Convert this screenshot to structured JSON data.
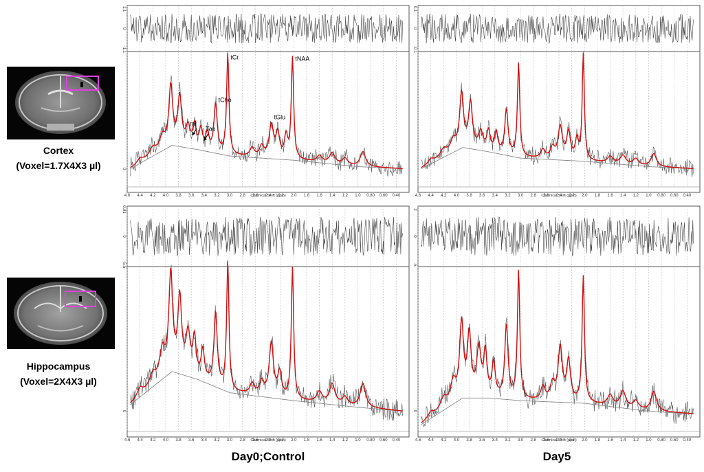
{
  "column_labels": {
    "left": "Day0;Control",
    "right": "Day5"
  },
  "regions": [
    {
      "name": "Cortex",
      "voxel": "(Voxel=1.7X4X3 µl)"
    },
    {
      "name": "Hippocampus",
      "voxel": "(Voxel=2X4X3 µl)"
    }
  ],
  "mri_box_color": "#e040e0",
  "colors": {
    "fit": "#d01010",
    "data": "#555555",
    "baseline": "#888888",
    "grid": "#bbbbbb"
  },
  "chart_data": [
    {
      "type": "line",
      "id": "cortex-day0",
      "xlabel": "Chemical Shift (ppm)",
      "xlim": [
        4.6,
        0.2
      ],
      "x_reversed": true,
      "ticks": [
        "4.6",
        "4.4",
        "4.2",
        "4.0",
        "3.8",
        "3.6",
        "3.4",
        "3.2",
        "3.0",
        "2.8",
        "2.6",
        "2.4",
        "2.2",
        "2.0",
        "1.8",
        "1.6",
        "1.4",
        "1.2",
        "1.0",
        "0.80",
        "0.60",
        "0.40"
      ],
      "residual_ticks": [
        "1.1",
        "0",
        "-1.1"
      ],
      "series": [
        {
          "name": "fit",
          "peaks": [
            [
              4.4,
              0.04,
              0.05
            ],
            [
              4.2,
              0.07,
              0.06
            ],
            [
              4.05,
              0.12,
              0.05
            ],
            [
              3.92,
              0.55,
              0.035
            ],
            [
              3.78,
              0.45,
              0.035
            ],
            [
              3.65,
              0.18,
              0.04
            ],
            [
              3.55,
              0.2,
              0.03
            ],
            [
              3.45,
              0.18,
              0.03
            ],
            [
              3.35,
              0.15,
              0.03
            ],
            [
              3.22,
              0.45,
              0.03
            ],
            [
              3.03,
              0.95,
              0.022
            ],
            [
              2.65,
              0.08,
              0.04
            ],
            [
              2.5,
              0.1,
              0.04
            ],
            [
              2.35,
              0.3,
              0.04
            ],
            [
              2.25,
              0.22,
              0.035
            ],
            [
              2.12,
              0.2,
              0.03
            ],
            [
              2.02,
              0.95,
              0.022
            ],
            [
              1.6,
              0.06,
              0.05
            ],
            [
              1.4,
              0.1,
              0.05
            ],
            [
              1.2,
              0.06,
              0.05
            ],
            [
              0.92,
              0.14,
              0.05
            ]
          ],
          "baseline": [
            [
              4.55,
              0.0
            ],
            [
              3.9,
              0.22
            ],
            [
              3.5,
              0.18
            ],
            [
              3.0,
              0.12
            ],
            [
              2.0,
              0.08
            ],
            [
              1.0,
              0.02
            ],
            [
              0.3,
              0.0
            ]
          ]
        }
      ],
      "peak_labels": [
        {
          "text": "tCr",
          "ppm": 3.03,
          "value": 1.0
        },
        {
          "text": "tNAA",
          "ppm": 2.02,
          "value": 0.99
        },
        {
          "text": "tCho",
          "ppm": 3.22,
          "value": 0.6
        },
        {
          "text": "tGlu",
          "ppm": 2.35,
          "value": 0.44
        },
        {
          "text": "mI",
          "ppm": 3.58,
          "value": 0.38
        },
        {
          "text": "Tau",
          "ppm": 3.42,
          "value": 0.33
        }
      ],
      "y_ticks": [
        "0"
      ]
    },
    {
      "type": "line",
      "id": "cortex-day5",
      "xlabel": "Chemical Shift (ppm)",
      "xlim": [
        4.6,
        0.2
      ],
      "x_reversed": true,
      "ticks": [
        "4.6",
        "4.4",
        "4.2",
        "4.0",
        "3.8",
        "3.6",
        "3.4",
        "3.2",
        "3.0",
        "2.8",
        "2.6",
        "2.4",
        "2.2",
        "2.0",
        "1.8",
        "1.6",
        "1.4",
        "1.2",
        "1.0",
        "0.80",
        "0.60",
        "0.40"
      ],
      "residual_ticks": [
        "0.1",
        "0",
        "-0.1"
      ],
      "series": [
        {
          "name": "fit",
          "peaks": [
            [
              4.4,
              0.04,
              0.05
            ],
            [
              4.2,
              0.07,
              0.06
            ],
            [
              4.05,
              0.1,
              0.05
            ],
            [
              3.92,
              0.5,
              0.035
            ],
            [
              3.78,
              0.42,
              0.035
            ],
            [
              3.62,
              0.16,
              0.04
            ],
            [
              3.5,
              0.18,
              0.03
            ],
            [
              3.38,
              0.18,
              0.03
            ],
            [
              3.22,
              0.42,
              0.03
            ],
            [
              3.03,
              0.88,
              0.022
            ],
            [
              2.65,
              0.08,
              0.04
            ],
            [
              2.5,
              0.1,
              0.04
            ],
            [
              2.38,
              0.3,
              0.04
            ],
            [
              2.25,
              0.25,
              0.035
            ],
            [
              2.12,
              0.18,
              0.03
            ],
            [
              2.02,
              0.99,
              0.02
            ],
            [
              1.6,
              0.06,
              0.05
            ],
            [
              1.4,
              0.08,
              0.05
            ],
            [
              1.2,
              0.06,
              0.05
            ],
            [
              0.92,
              0.12,
              0.05
            ]
          ],
          "baseline": [
            [
              4.55,
              0.0
            ],
            [
              3.9,
              0.2
            ],
            [
              3.5,
              0.16
            ],
            [
              3.0,
              0.1
            ],
            [
              2.0,
              0.07
            ],
            [
              1.0,
              0.02
            ],
            [
              0.3,
              0.0
            ]
          ]
        }
      ],
      "peak_labels": [],
      "y_ticks": []
    },
    {
      "type": "line",
      "id": "hippocampus-day0",
      "xlabel": "Chemical Shift (ppm)",
      "xlim": [
        4.6,
        0.2
      ],
      "x_reversed": true,
      "ticks": [
        "4.6",
        "4.4",
        "4.2",
        "4.0",
        "3.8",
        "3.6",
        "3.4",
        "3.2",
        "3.0",
        "2.8",
        "2.6",
        "2.4",
        "2.2",
        "2.0",
        "1.8",
        "1.6",
        "1.4",
        "1.2",
        "1.0",
        "0.80",
        "0.60",
        "0.40"
      ],
      "residual_ticks": [
        "0.81",
        "0",
        "-5.5"
      ],
      "series": [
        {
          "name": "fit",
          "peaks": [
            [
              4.4,
              0.06,
              0.05
            ],
            [
              4.2,
              0.08,
              0.06
            ],
            [
              4.05,
              0.2,
              0.05
            ],
            [
              3.92,
              0.72,
              0.035
            ],
            [
              3.78,
              0.55,
              0.035
            ],
            [
              3.65,
              0.3,
              0.04
            ],
            [
              3.55,
              0.28,
              0.03
            ],
            [
              3.42,
              0.22,
              0.03
            ],
            [
              3.22,
              0.55,
              0.03
            ],
            [
              3.03,
              0.97,
              0.022
            ],
            [
              2.65,
              0.08,
              0.04
            ],
            [
              2.5,
              0.1,
              0.04
            ],
            [
              2.35,
              0.4,
              0.04
            ],
            [
              2.22,
              0.18,
              0.035
            ],
            [
              2.02,
              0.99,
              0.022
            ],
            [
              1.6,
              0.08,
              0.05
            ],
            [
              1.4,
              0.15,
              0.05
            ],
            [
              1.2,
              0.06,
              0.05
            ],
            [
              0.92,
              0.18,
              0.05
            ]
          ],
          "baseline": [
            [
              4.55,
              0.05
            ],
            [
              3.9,
              0.3
            ],
            [
              3.5,
              0.24
            ],
            [
              3.0,
              0.14
            ],
            [
              2.0,
              0.08
            ],
            [
              1.0,
              0.03
            ],
            [
              0.3,
              0.0
            ]
          ]
        }
      ],
      "peak_labels": [],
      "y_ticks": [
        "0"
      ]
    },
    {
      "type": "line",
      "id": "hippocampus-day5",
      "xlabel": "Chemical Shift (ppm)",
      "xlim": [
        4.6,
        0.2
      ],
      "x_reversed": true,
      "ticks": [
        "4.6",
        "4.4",
        "4.2",
        "4.0",
        "3.8",
        "3.6",
        "3.4",
        "3.2",
        "3.0",
        "2.8",
        "2.6",
        "2.4",
        "2.2",
        "2.0",
        "1.8",
        "1.6",
        "1.4",
        "1.2",
        "1.0",
        "0.80",
        "0.60",
        "0.40"
      ],
      "residual_ticks": [
        "2",
        "0",
        "-5"
      ],
      "series": [
        {
          "name": "fit",
          "peaks": [
            [
              4.4,
              0.04,
              0.05
            ],
            [
              4.2,
              0.08,
              0.06
            ],
            [
              4.05,
              0.15,
              0.05
            ],
            [
              3.92,
              0.55,
              0.035
            ],
            [
              3.8,
              0.45,
              0.035
            ],
            [
              3.65,
              0.35,
              0.04
            ],
            [
              3.55,
              0.32,
              0.03
            ],
            [
              3.42,
              0.25,
              0.03
            ],
            [
              3.22,
              0.55,
              0.03
            ],
            [
              3.03,
              0.97,
              0.022
            ],
            [
              2.65,
              0.1,
              0.04
            ],
            [
              2.5,
              0.12,
              0.04
            ],
            [
              2.38,
              0.4,
              0.04
            ],
            [
              2.25,
              0.3,
              0.035
            ],
            [
              2.02,
              0.95,
              0.022
            ],
            [
              1.6,
              0.08,
              0.05
            ],
            [
              1.4,
              0.12,
              0.05
            ],
            [
              1.2,
              0.06,
              0.05
            ],
            [
              0.92,
              0.15,
              0.05
            ]
          ],
          "baseline": [
            [
              4.55,
              -0.1
            ],
            [
              3.9,
              0.1
            ],
            [
              3.5,
              0.1
            ],
            [
              3.0,
              0.08
            ],
            [
              2.0,
              0.06
            ],
            [
              1.0,
              0.0
            ],
            [
              0.3,
              -0.02
            ]
          ]
        }
      ],
      "peak_labels": [],
      "y_ticks": [
        "0"
      ]
    }
  ]
}
